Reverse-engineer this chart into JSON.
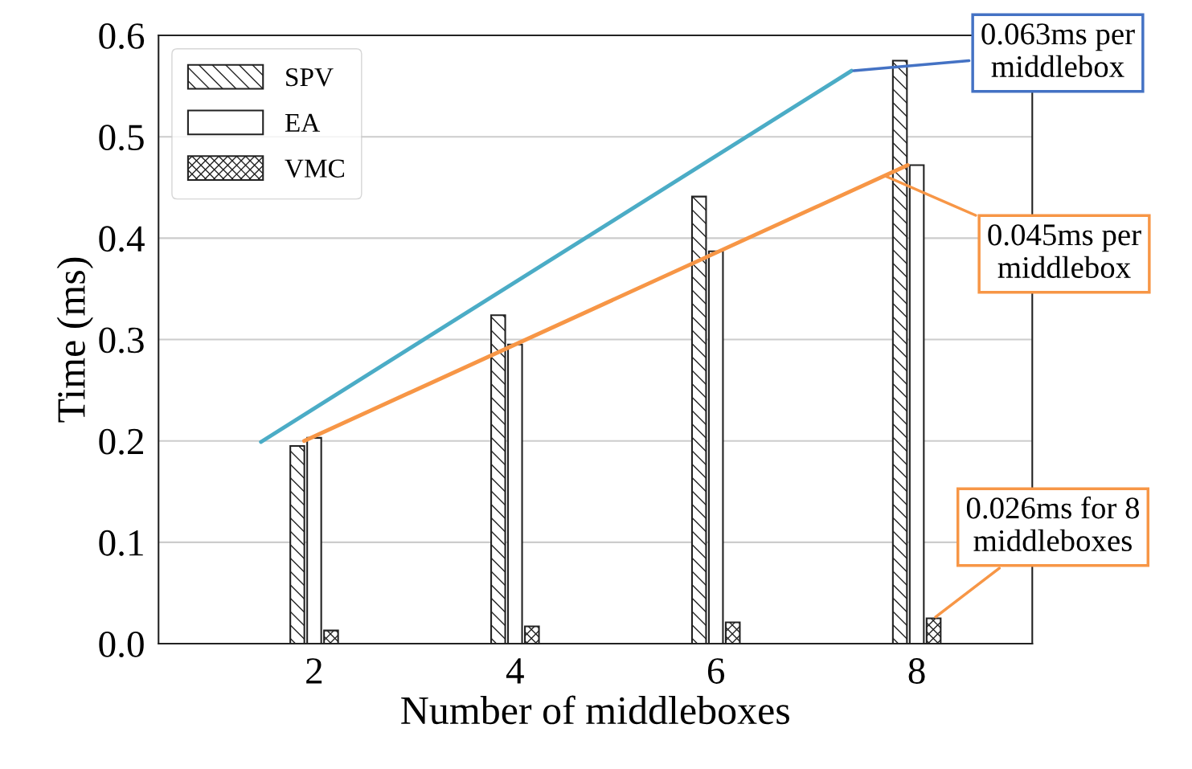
{
  "chart_data": {
    "type": "bar",
    "xlabel": "Number of middleboxes",
    "ylabel": "Time (ms)",
    "x": [
      2,
      4,
      6,
      8
    ],
    "xlim": [
      0.45,
      9.15
    ],
    "xticks": [
      2,
      4,
      6,
      8
    ],
    "ylim": [
      0,
      0.6
    ],
    "yticks": [
      {
        "value": 0,
        "label": "0.0"
      },
      0.1,
      0.2,
      0.3,
      0.4,
      0.5,
      0.6
    ],
    "grid": "y",
    "legend": "top left",
    "series": [
      {
        "name": "SPV",
        "color": "#222222",
        "values": [
          0.195,
          0.324,
          0.441,
          0.575
        ]
      },
      {
        "name": "EA",
        "color": "#ffffff",
        "values": [
          0.203,
          0.295,
          0.387,
          0.472
        ]
      },
      {
        "name": "VMC",
        "color": "#222222",
        "values": [
          0.013,
          0.017,
          0.021,
          0.025
        ]
      },
      {
        "type": "line",
        "color": "#4bacc6",
        "x": [
          1.47,
          7.35
        ],
        "values": [
          0.199,
          0.565
        ]
      },
      {
        "type": "line",
        "color": "#f79646",
        "x": [
          1.9,
          7.91
        ],
        "values": [
          0.2,
          0.472
        ]
      }
    ],
    "annotations": [
      {
        "text": "0.063ms per\nmiddlebox",
        "x": 7.35,
        "y": 0.565
      },
      {
        "text": "0.045ms per\nmiddlebox",
        "x": 7.67,
        "y": 0.462
      },
      {
        "text": "0.026ms for 8\nmiddleboxes",
        "x": 8.17,
        "y": 0.025
      }
    ]
  }
}
